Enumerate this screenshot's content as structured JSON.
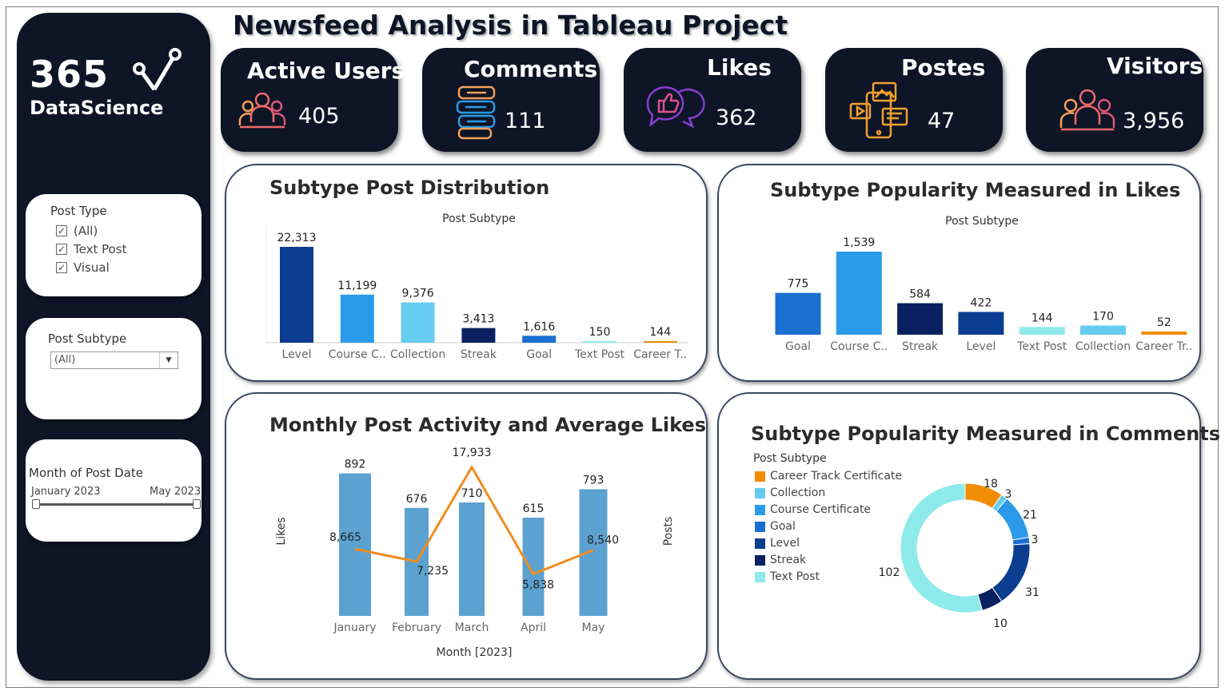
{
  "page": {
    "title": "Newsfeed Analysis in Tableau Project"
  },
  "logo": {
    "number": "365",
    "name": "DataScience"
  },
  "filters": {
    "post_type": {
      "title": "Post Type",
      "options": [
        "(All)",
        "Text Post",
        "Visual"
      ]
    },
    "post_subtype": {
      "title": "Post Subtype",
      "selected": "(All)"
    },
    "month": {
      "title": "Month of Post Date",
      "start": "January 2023",
      "end": "May 2023"
    }
  },
  "kpis": [
    {
      "label": "Active Users",
      "value": "405",
      "icon": "users-icon"
    },
    {
      "label": "Comments",
      "value": "111",
      "icon": "chat-bubbles-icon"
    },
    {
      "label": "Likes",
      "value": "362",
      "icon": "thumbs-up-icon"
    },
    {
      "label": "Postes",
      "value": "47",
      "icon": "media-post-icon"
    },
    {
      "label": "Visitors",
      "value": "3,956",
      "icon": "visitors-icon"
    }
  ],
  "chart_data": [
    {
      "id": "subtype-distribution",
      "type": "bar",
      "title": "Subtype Post Distribution",
      "header": "Post Subtype",
      "categories": [
        "Level",
        "Course C..",
        "Collection",
        "Streak",
        "Goal",
        "Text Post",
        "Career T.."
      ],
      "values": [
        22313,
        11199,
        9376,
        3413,
        1616,
        150,
        144
      ],
      "labels": [
        "22,313",
        "11,199",
        "9,376",
        "3,413",
        "1,616",
        "150",
        "144"
      ],
      "colors": [
        "#0b3d91",
        "#2b9ae8",
        "#66cdf0",
        "#0a2060",
        "#1a6fd1",
        "#8eeae9",
        "#f28c00"
      ],
      "ylim": [
        0,
        24000
      ]
    },
    {
      "id": "subtype-likes",
      "type": "bar",
      "title": "Subtype Popularity Measured in Likes",
      "header": "Post Subtype",
      "categories": [
        "Goal",
        "Course C..",
        "Streak",
        "Level",
        "Text Post",
        "Collection",
        "Career Tr.."
      ],
      "values": [
        775,
        1539,
        584,
        422,
        144,
        170,
        52
      ],
      "labels": [
        "775",
        "1,539",
        "584",
        "422",
        "144",
        "170",
        "52"
      ],
      "colors": [
        "#1a6fd1",
        "#2b9ae8",
        "#0a2060",
        "#0b3d91",
        "#8eeae9",
        "#66cdf0",
        "#f28c00"
      ]
    },
    {
      "id": "monthly-activity",
      "type": "bar",
      "title": "Monthly Post Activity and Average Likes",
      "xlabel": "Month [2023]",
      "ylabel_left": "Likes",
      "ylabel_right": "Posts",
      "categories": [
        "January",
        "February",
        "March",
        "April",
        "May"
      ],
      "series": [
        {
          "values": [
            892,
            676,
            710,
            615,
            793
          ],
          "labels": [
            "892",
            "676",
            "710",
            "615",
            "793"
          ],
          "color": "#5ca2d1",
          "type": "bar"
        },
        {
          "values": [
            8665,
            7235,
            17933,
            5838,
            8540
          ],
          "labels": [
            "8,665",
            "7,235",
            "17,933",
            "5,838",
            "8,540"
          ],
          "color": "#f28c1f",
          "type": "line"
        }
      ]
    },
    {
      "id": "subtype-comments",
      "type": "pie",
      "title": "Subtype Popularity Measured in Comments",
      "legend_title": "Post Subtype",
      "legend": [
        {
          "name": "Career Track Certificate",
          "color": "#f28c00"
        },
        {
          "name": "Collection",
          "color": "#66cdf0"
        },
        {
          "name": "Course Certificate",
          "color": "#2b9ae8"
        },
        {
          "name": "Goal",
          "color": "#1a6fd1"
        },
        {
          "name": "Level",
          "color": "#0b3d91"
        },
        {
          "name": "Streak",
          "color": "#0a2060"
        },
        {
          "name": "Text Post",
          "color": "#8eeae9"
        }
      ],
      "slices": [
        {
          "name": "Career Track Certificate",
          "value": 18,
          "color": "#f28c00"
        },
        {
          "name": "Collection",
          "value": 3,
          "color": "#66cdf0"
        },
        {
          "name": "Course Certificate",
          "value": 21,
          "color": "#2b9ae8"
        },
        {
          "name": "Goal",
          "value": 3,
          "color": "#1a6fd1"
        },
        {
          "name": "Level",
          "value": 31,
          "color": "#0b3d91"
        },
        {
          "name": "Streak",
          "value": 10,
          "color": "#0a2060"
        },
        {
          "name": "Text Post",
          "value": 102,
          "color": "#8eeae9"
        }
      ]
    }
  ]
}
